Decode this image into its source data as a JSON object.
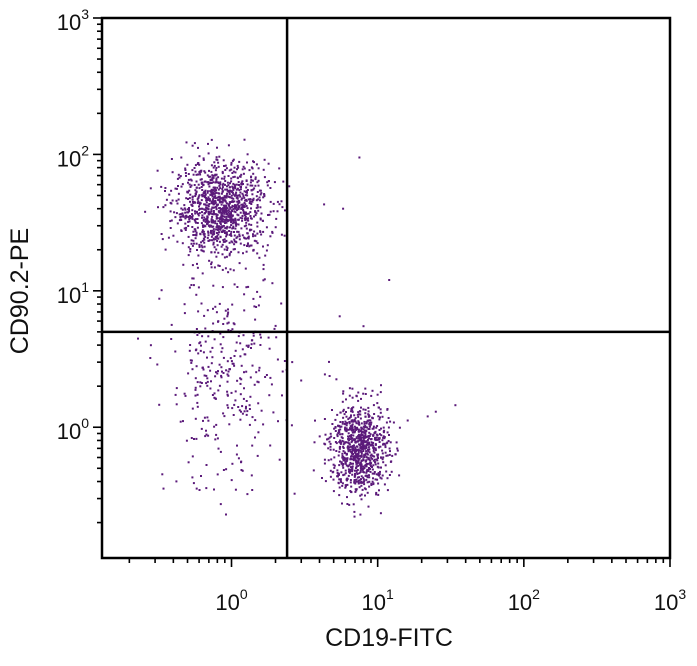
{
  "chart_data": {
    "type": "scatter",
    "title": "",
    "xlabel": "CD19-FITC",
    "ylabel": "CD90.2-PE",
    "xscale": "log",
    "yscale": "log",
    "xlim": [
      0.13,
      1000
    ],
    "ylim": [
      0.11,
      1000
    ],
    "x_ticks": [
      {
        "base": "10",
        "exp": "0",
        "value": 1
      },
      {
        "base": "10",
        "exp": "1",
        "value": 10
      },
      {
        "base": "10",
        "exp": "2",
        "value": 100
      },
      {
        "base": "10",
        "exp": "3",
        "value": 1000
      }
    ],
    "y_ticks": [
      {
        "base": "10",
        "exp": "0",
        "value": 1
      },
      {
        "base": "10",
        "exp": "1",
        "value": 10
      },
      {
        "base": "10",
        "exp": "2",
        "value": 100
      },
      {
        "base": "10",
        "exp": "3",
        "value": 1000
      }
    ],
    "quadrant_gate": {
      "x": 2.4,
      "y": 5.0
    },
    "grid": false,
    "point_color": "#5b1a7a",
    "populations": [
      {
        "center": [
          0.85,
          40
        ],
        "spread": [
          0.16,
          0.17
        ],
        "count": 1150
      },
      {
        "center": [
          0.9,
          2.2
        ],
        "spread": [
          0.2,
          0.4
        ],
        "count": 330
      },
      {
        "center": [
          7.5,
          0.7
        ],
        "spread": [
          0.1,
          0.17
        ],
        "count": 850
      }
    ],
    "outlier_points": [
      [
        7.5,
        95
      ],
      [
        4.3,
        43
      ],
      [
        5.8,
        40
      ],
      [
        12,
        12
      ],
      [
        8,
        5.5
      ],
      [
        5.5,
        6.5
      ],
      [
        3.3,
        5.0
      ],
      [
        34,
        1.45
      ],
      [
        22,
        1.2
      ],
      [
        25,
        1.3
      ],
      [
        2.6,
        3.0
      ],
      [
        3.0,
        2.2
      ]
    ]
  }
}
